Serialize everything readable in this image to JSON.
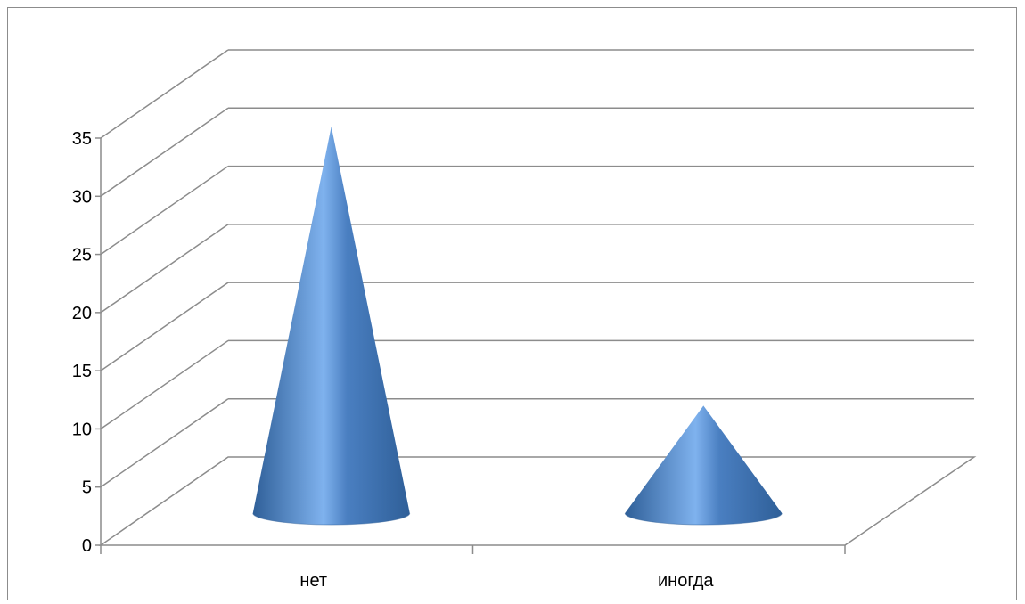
{
  "chart_data": {
    "type": "bar",
    "style": "3d-cone",
    "categories": [
      "нет",
      "иногда"
    ],
    "values": [
      34,
      10
    ],
    "ylim": [
      0,
      35
    ],
    "ytick_step": 5,
    "yticks": [
      "0",
      "5",
      "10",
      "15",
      "20",
      "25",
      "30",
      "35"
    ],
    "grid": true,
    "legend": "none",
    "colors": {
      "cone_dark": "#2f5f98",
      "cone_mid": "#4a7fc1",
      "cone_light": "#7fb2ee",
      "gridline": "#8c8c8c",
      "axis": "#8c8c8c"
    }
  }
}
